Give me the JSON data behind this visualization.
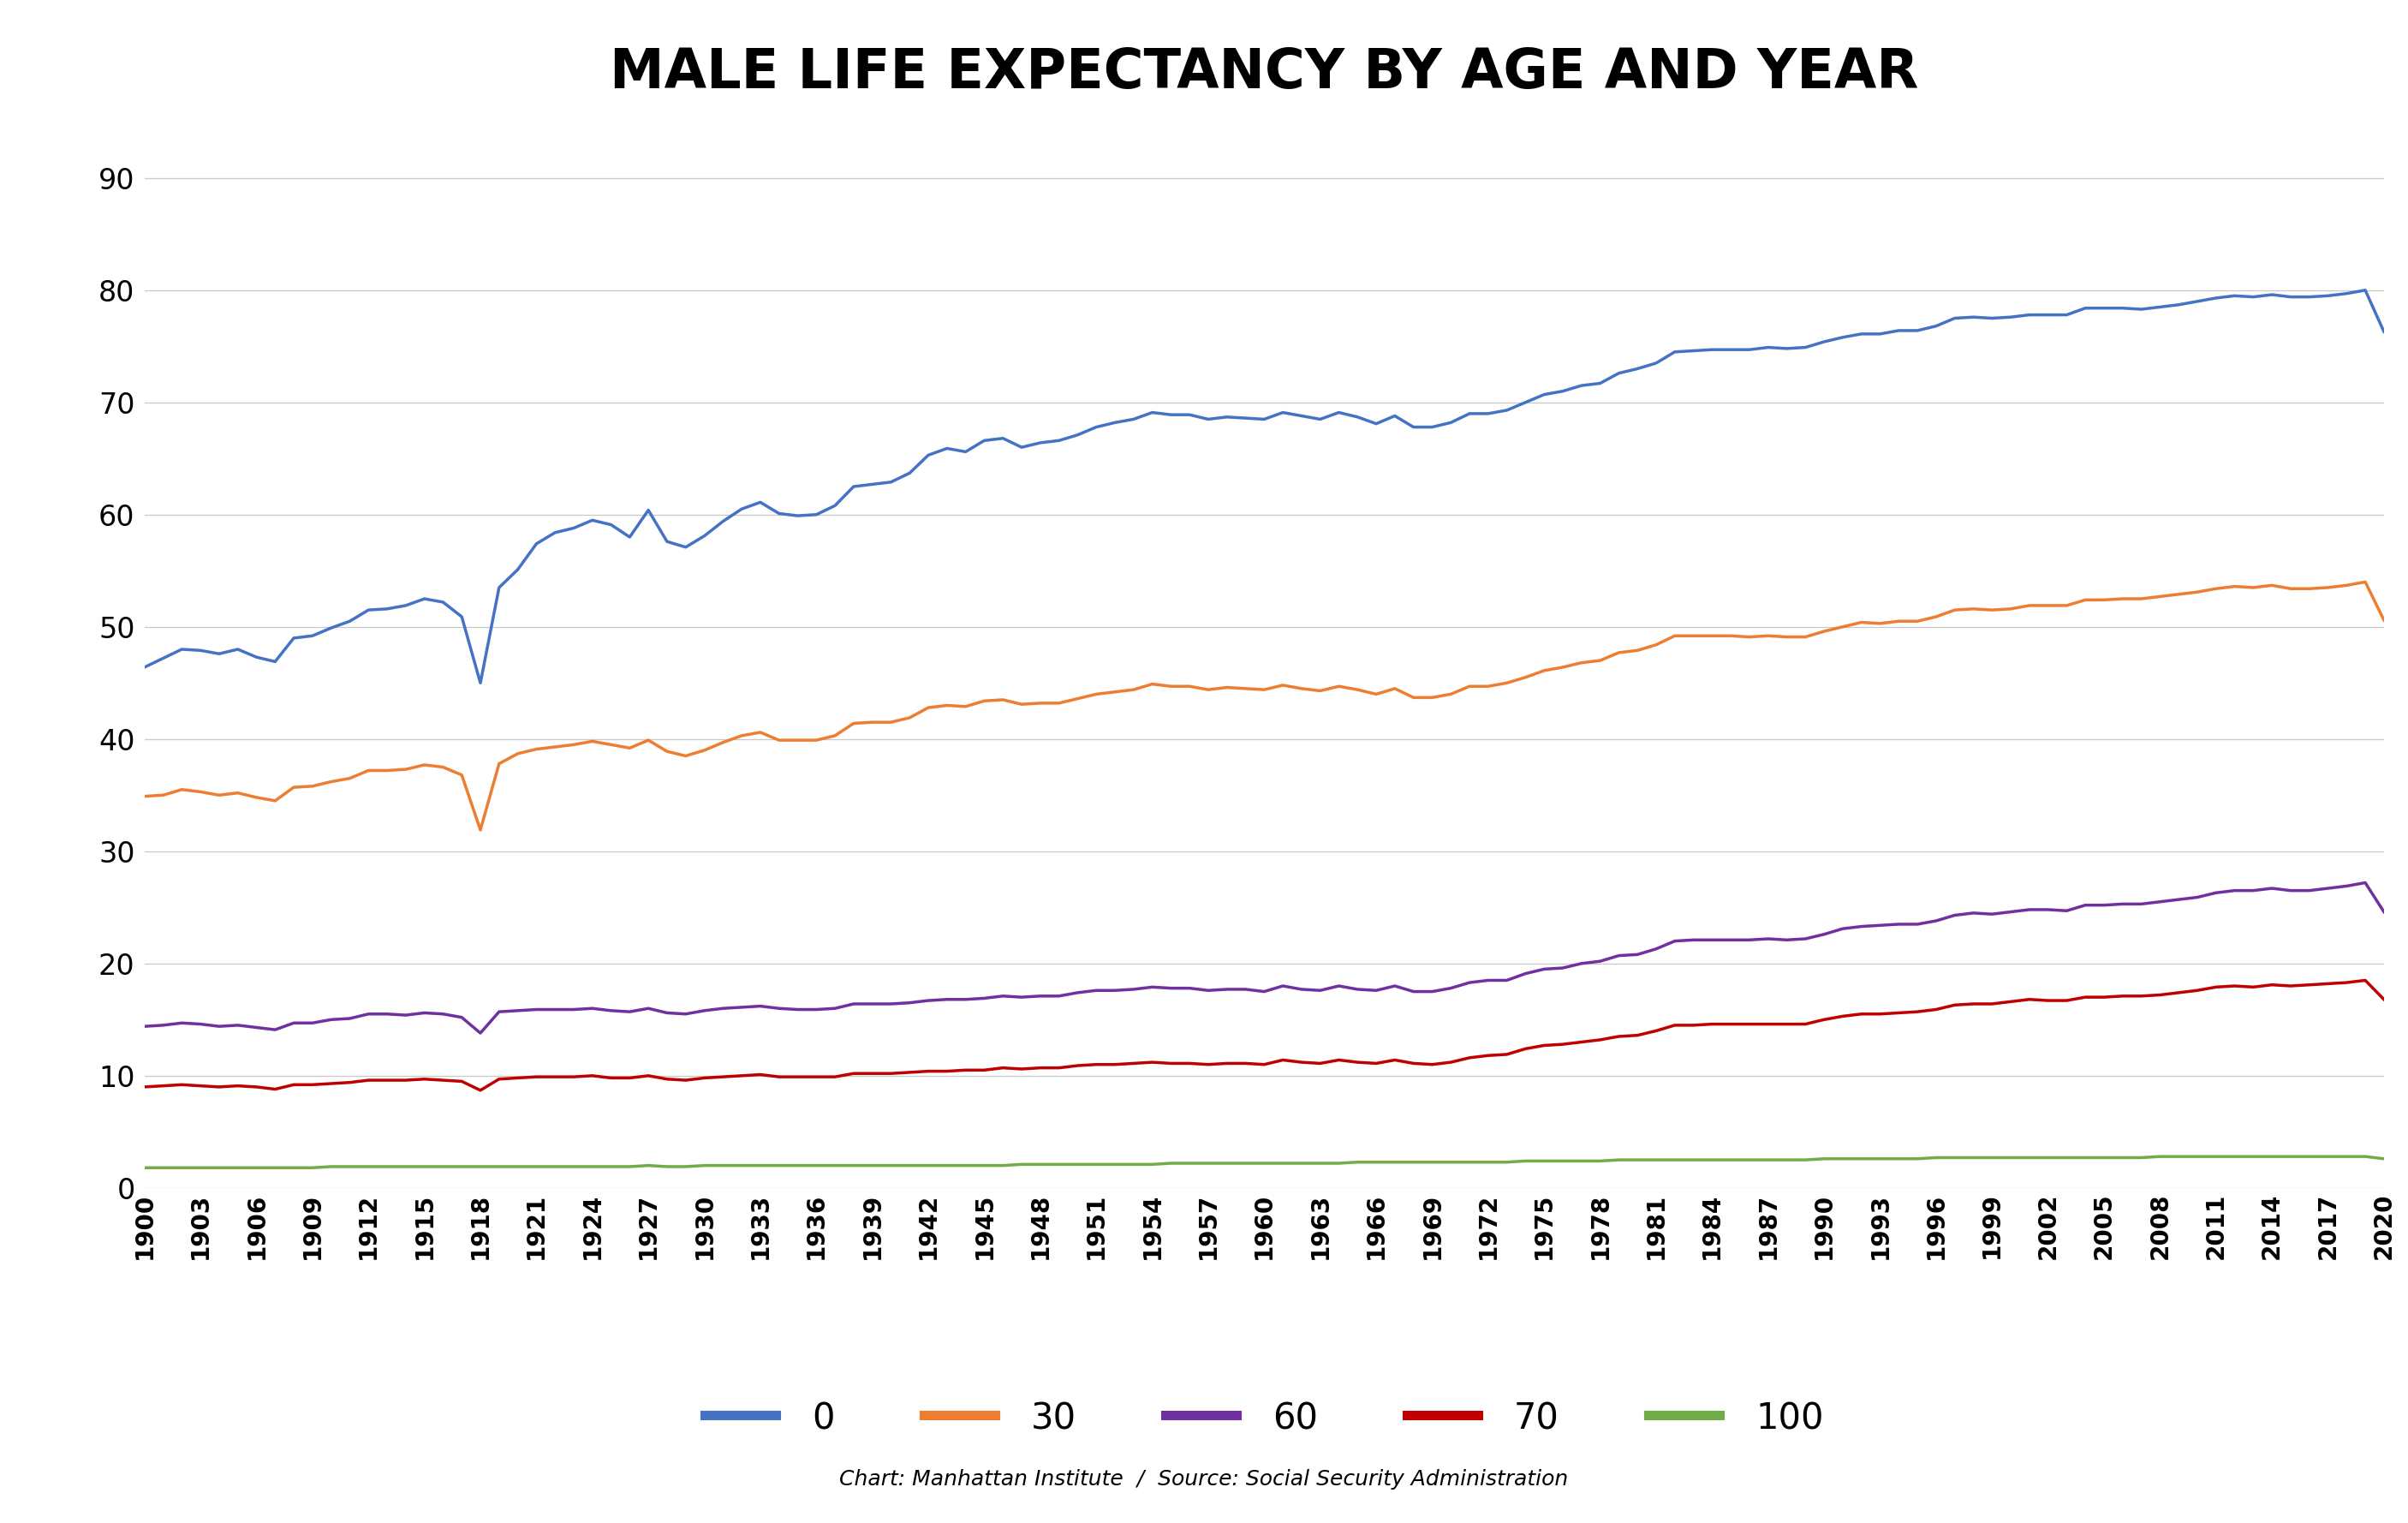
{
  "title": "MALE LIFE EXPECTANCY BY AGE AND YEAR",
  "subtitle": "Chart: Manhattan Institute  /  Source: Social Security Administration",
  "legend_labels": [
    "0",
    "30",
    "60",
    "70",
    "100"
  ],
  "colors": {
    "0": "#4472C4",
    "30": "#ED7D31",
    "60": "#7030A0",
    "70": "#C00000",
    "100": "#70AD47"
  },
  "years": [
    1900,
    1901,
    1902,
    1903,
    1904,
    1905,
    1906,
    1907,
    1908,
    1909,
    1910,
    1911,
    1912,
    1913,
    1914,
    1915,
    1916,
    1917,
    1918,
    1919,
    1920,
    1921,
    1922,
    1923,
    1924,
    1925,
    1926,
    1927,
    1928,
    1929,
    1930,
    1931,
    1932,
    1933,
    1934,
    1935,
    1936,
    1937,
    1938,
    1939,
    1940,
    1941,
    1942,
    1943,
    1944,
    1945,
    1946,
    1947,
    1948,
    1949,
    1950,
    1951,
    1952,
    1953,
    1954,
    1955,
    1956,
    1957,
    1958,
    1959,
    1960,
    1961,
    1962,
    1963,
    1964,
    1965,
    1966,
    1967,
    1968,
    1969,
    1970,
    1971,
    1972,
    1973,
    1974,
    1975,
    1976,
    1977,
    1978,
    1979,
    1980,
    1981,
    1982,
    1983,
    1984,
    1985,
    1986,
    1987,
    1988,
    1989,
    1990,
    1991,
    1992,
    1993,
    1994,
    1995,
    1996,
    1997,
    1998,
    1999,
    2000,
    2001,
    2002,
    2003,
    2004,
    2005,
    2006,
    2007,
    2008,
    2009,
    2010,
    2011,
    2012,
    2013,
    2014,
    2015,
    2016,
    2017,
    2018,
    2019,
    2020
  ],
  "series": {
    "0": [
      46.4,
      47.2,
      48.0,
      47.9,
      47.6,
      48.0,
      47.3,
      46.9,
      49.0,
      49.2,
      49.9,
      50.5,
      51.5,
      51.6,
      51.9,
      52.5,
      52.2,
      50.9,
      45.0,
      53.5,
      55.1,
      57.4,
      58.4,
      58.8,
      59.5,
      59.1,
      58.0,
      60.4,
      57.6,
      57.1,
      58.1,
      59.4,
      60.5,
      61.1,
      60.1,
      59.9,
      60.0,
      60.8,
      62.5,
      62.7,
      62.9,
      63.7,
      65.3,
      65.9,
      65.6,
      66.6,
      66.8,
      66.0,
      66.4,
      66.6,
      67.1,
      67.8,
      68.2,
      68.5,
      69.1,
      68.9,
      68.9,
      68.5,
      68.7,
      68.6,
      68.5,
      69.1,
      68.8,
      68.5,
      69.1,
      68.7,
      68.1,
      68.8,
      67.8,
      67.8,
      68.2,
      69.0,
      69.0,
      69.3,
      70.0,
      70.7,
      71.0,
      71.5,
      71.7,
      72.6,
      73.0,
      73.5,
      74.5,
      74.6,
      74.7,
      74.7,
      74.7,
      74.9,
      74.8,
      74.9,
      75.4,
      75.8,
      76.1,
      76.1,
      76.4,
      76.4,
      76.8,
      77.5,
      77.6,
      77.5,
      77.6,
      77.8,
      77.8,
      77.8,
      78.4,
      78.4,
      78.4,
      78.3,
      78.5,
      78.7,
      79.0,
      79.3,
      79.5,
      79.4,
      79.6,
      79.4,
      79.4,
      79.5,
      79.7,
      80.0,
      76.3
    ],
    "30": [
      34.9,
      35.0,
      35.5,
      35.3,
      35.0,
      35.2,
      34.8,
      34.5,
      35.7,
      35.8,
      36.2,
      36.5,
      37.2,
      37.2,
      37.3,
      37.7,
      37.5,
      36.8,
      31.9,
      37.8,
      38.7,
      39.1,
      39.3,
      39.5,
      39.8,
      39.5,
      39.2,
      39.9,
      38.9,
      38.5,
      39.0,
      39.7,
      40.3,
      40.6,
      39.9,
      39.9,
      39.9,
      40.3,
      41.4,
      41.5,
      41.5,
      41.9,
      42.8,
      43.0,
      42.9,
      43.4,
      43.5,
      43.1,
      43.2,
      43.2,
      43.6,
      44.0,
      44.2,
      44.4,
      44.9,
      44.7,
      44.7,
      44.4,
      44.6,
      44.5,
      44.4,
      44.8,
      44.5,
      44.3,
      44.7,
      44.4,
      44.0,
      44.5,
      43.7,
      43.7,
      44.0,
      44.7,
      44.7,
      45.0,
      45.5,
      46.1,
      46.4,
      46.8,
      47.0,
      47.7,
      47.9,
      48.4,
      49.2,
      49.2,
      49.2,
      49.2,
      49.1,
      49.2,
      49.1,
      49.1,
      49.6,
      50.0,
      50.4,
      50.3,
      50.5,
      50.5,
      50.9,
      51.5,
      51.6,
      51.5,
      51.6,
      51.9,
      51.9,
      51.9,
      52.4,
      52.4,
      52.5,
      52.5,
      52.7,
      52.9,
      53.1,
      53.4,
      53.6,
      53.5,
      53.7,
      53.4,
      53.4,
      53.5,
      53.7,
      54.0,
      50.6
    ],
    "60": [
      14.4,
      14.5,
      14.7,
      14.6,
      14.4,
      14.5,
      14.3,
      14.1,
      14.7,
      14.7,
      15.0,
      15.1,
      15.5,
      15.5,
      15.4,
      15.6,
      15.5,
      15.2,
      13.8,
      15.7,
      15.8,
      15.9,
      15.9,
      15.9,
      16.0,
      15.8,
      15.7,
      16.0,
      15.6,
      15.5,
      15.8,
      16.0,
      16.1,
      16.2,
      16.0,
      15.9,
      15.9,
      16.0,
      16.4,
      16.4,
      16.4,
      16.5,
      16.7,
      16.8,
      16.8,
      16.9,
      17.1,
      17.0,
      17.1,
      17.1,
      17.4,
      17.6,
      17.6,
      17.7,
      17.9,
      17.8,
      17.8,
      17.6,
      17.7,
      17.7,
      17.5,
      18.0,
      17.7,
      17.6,
      18.0,
      17.7,
      17.6,
      18.0,
      17.5,
      17.5,
      17.8,
      18.3,
      18.5,
      18.5,
      19.1,
      19.5,
      19.6,
      20.0,
      20.2,
      20.7,
      20.8,
      21.3,
      22.0,
      22.1,
      22.1,
      22.1,
      22.1,
      22.2,
      22.1,
      22.2,
      22.6,
      23.1,
      23.3,
      23.4,
      23.5,
      23.5,
      23.8,
      24.3,
      24.5,
      24.4,
      24.6,
      24.8,
      24.8,
      24.7,
      25.2,
      25.2,
      25.3,
      25.3,
      25.5,
      25.7,
      25.9,
      26.3,
      26.5,
      26.5,
      26.7,
      26.5,
      26.5,
      26.7,
      26.9,
      27.2,
      24.6
    ],
    "70": [
      9.0,
      9.1,
      9.2,
      9.1,
      9.0,
      9.1,
      9.0,
      8.8,
      9.2,
      9.2,
      9.3,
      9.4,
      9.6,
      9.6,
      9.6,
      9.7,
      9.6,
      9.5,
      8.7,
      9.7,
      9.8,
      9.9,
      9.9,
      9.9,
      10.0,
      9.8,
      9.8,
      10.0,
      9.7,
      9.6,
      9.8,
      9.9,
      10.0,
      10.1,
      9.9,
      9.9,
      9.9,
      9.9,
      10.2,
      10.2,
      10.2,
      10.3,
      10.4,
      10.4,
      10.5,
      10.5,
      10.7,
      10.6,
      10.7,
      10.7,
      10.9,
      11.0,
      11.0,
      11.1,
      11.2,
      11.1,
      11.1,
      11.0,
      11.1,
      11.1,
      11.0,
      11.4,
      11.2,
      11.1,
      11.4,
      11.2,
      11.1,
      11.4,
      11.1,
      11.0,
      11.2,
      11.6,
      11.8,
      11.9,
      12.4,
      12.7,
      12.8,
      13.0,
      13.2,
      13.5,
      13.6,
      14.0,
      14.5,
      14.5,
      14.6,
      14.6,
      14.6,
      14.6,
      14.6,
      14.6,
      15.0,
      15.3,
      15.5,
      15.5,
      15.6,
      15.7,
      15.9,
      16.3,
      16.4,
      16.4,
      16.6,
      16.8,
      16.7,
      16.7,
      17.0,
      17.0,
      17.1,
      17.1,
      17.2,
      17.4,
      17.6,
      17.9,
      18.0,
      17.9,
      18.1,
      18.0,
      18.1,
      18.2,
      18.3,
      18.5,
      16.8
    ],
    "100": [
      1.8,
      1.8,
      1.8,
      1.8,
      1.8,
      1.8,
      1.8,
      1.8,
      1.8,
      1.8,
      1.9,
      1.9,
      1.9,
      1.9,
      1.9,
      1.9,
      1.9,
      1.9,
      1.9,
      1.9,
      1.9,
      1.9,
      1.9,
      1.9,
      1.9,
      1.9,
      1.9,
      2.0,
      1.9,
      1.9,
      2.0,
      2.0,
      2.0,
      2.0,
      2.0,
      2.0,
      2.0,
      2.0,
      2.0,
      2.0,
      2.0,
      2.0,
      2.0,
      2.0,
      2.0,
      2.0,
      2.0,
      2.1,
      2.1,
      2.1,
      2.1,
      2.1,
      2.1,
      2.1,
      2.1,
      2.2,
      2.2,
      2.2,
      2.2,
      2.2,
      2.2,
      2.2,
      2.2,
      2.2,
      2.2,
      2.3,
      2.3,
      2.3,
      2.3,
      2.3,
      2.3,
      2.3,
      2.3,
      2.3,
      2.4,
      2.4,
      2.4,
      2.4,
      2.4,
      2.5,
      2.5,
      2.5,
      2.5,
      2.5,
      2.5,
      2.5,
      2.5,
      2.5,
      2.5,
      2.5,
      2.6,
      2.6,
      2.6,
      2.6,
      2.6,
      2.6,
      2.7,
      2.7,
      2.7,
      2.7,
      2.7,
      2.7,
      2.7,
      2.7,
      2.7,
      2.7,
      2.7,
      2.7,
      2.8,
      2.8,
      2.8,
      2.8,
      2.8,
      2.8,
      2.8,
      2.8,
      2.8,
      2.8,
      2.8,
      2.8,
      2.6
    ]
  },
  "ylim": [
    0,
    95
  ],
  "yticks": [
    0,
    10,
    20,
    30,
    40,
    50,
    60,
    70,
    80,
    90
  ],
  "xlim": [
    1900,
    2020
  ],
  "background_color": "#FFFFFF",
  "line_width": 2.5,
  "title_fontsize": 46,
  "tick_fontsize": 24,
  "legend_fontsize": 30,
  "subtitle_fontsize": 18
}
